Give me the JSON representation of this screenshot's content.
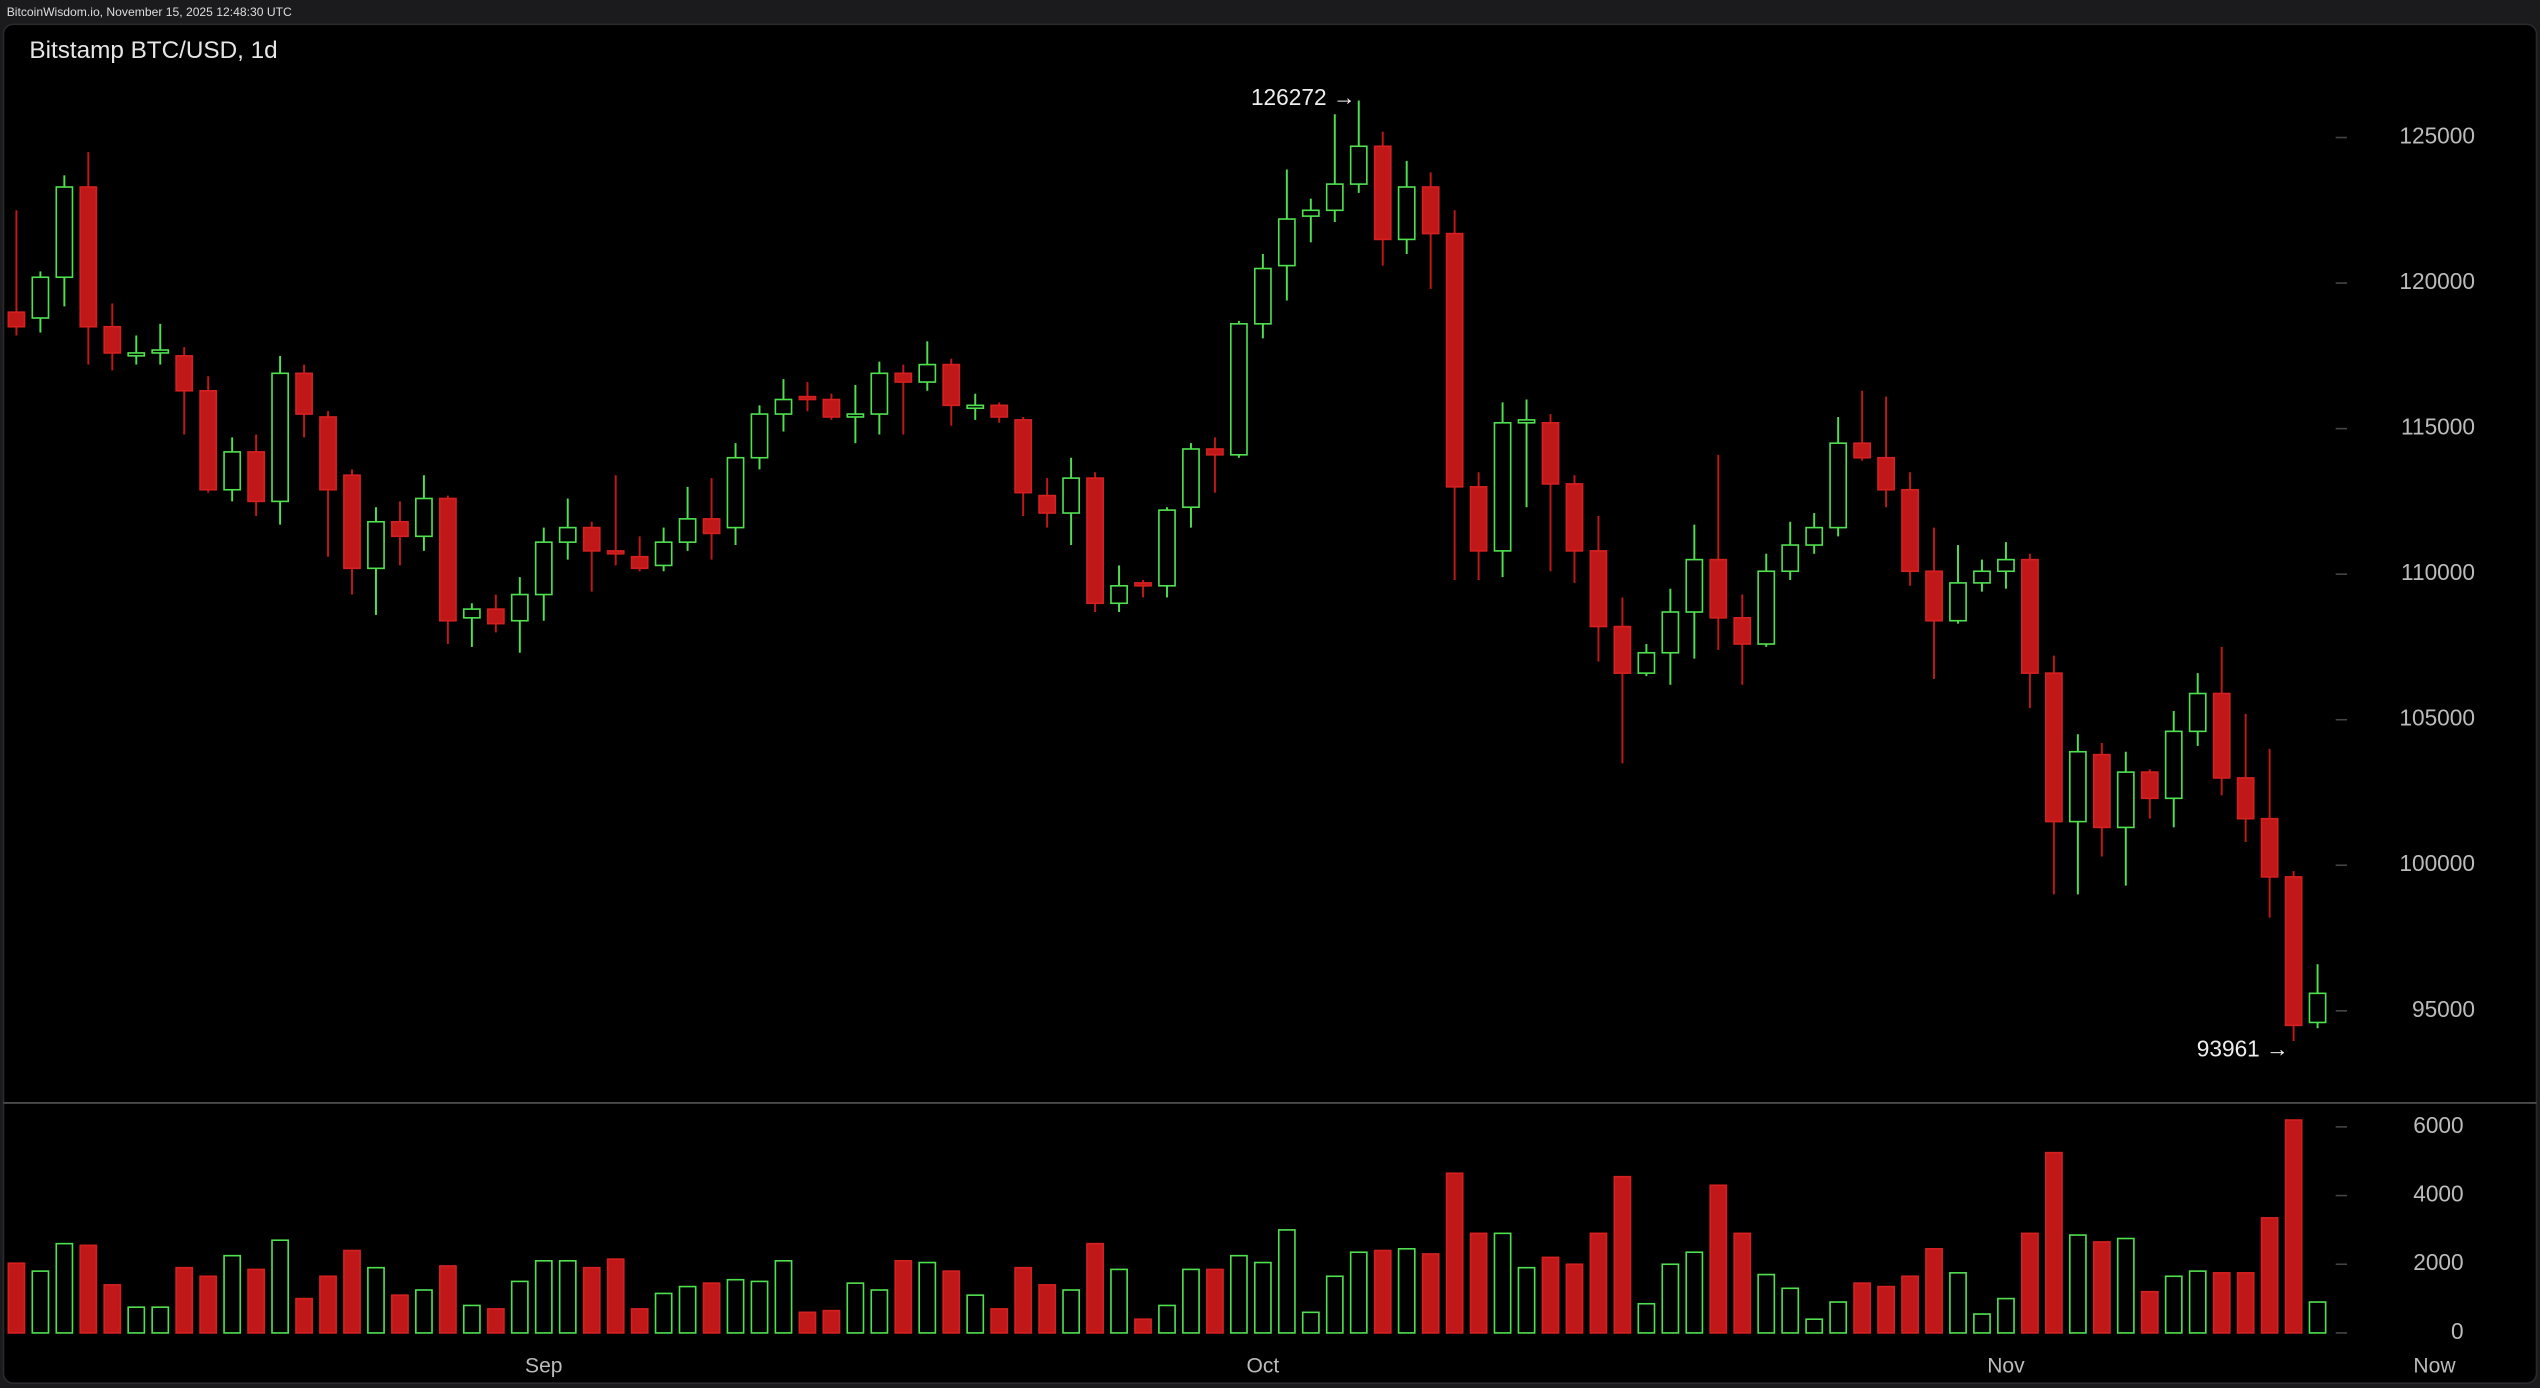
{
  "header": "BitcoinWisdom.io, November 15, 2025 12:48:30 UTC",
  "chart_data": {
    "type": "candlestick",
    "title": "Bitstamp BTC/USD, 1d",
    "up_color": "#4fe04f",
    "down_color": "#c01818",
    "categories": [
      null,
      null,
      null,
      null,
      null,
      null,
      null,
      null,
      null,
      null,
      null,
      null,
      null,
      null,
      null,
      null,
      null,
      null,
      null,
      null,
      null,
      null,
      "Sep",
      null,
      null,
      null,
      null,
      null,
      null,
      null,
      null,
      null,
      null,
      null,
      null,
      null,
      null,
      null,
      null,
      null,
      null,
      null,
      null,
      null,
      null,
      null,
      null,
      null,
      null,
      null,
      null,
      null,
      "Oct",
      null,
      null,
      null,
      null,
      null,
      null,
      null,
      null,
      null,
      null,
      null,
      null,
      null,
      null,
      null,
      null,
      null,
      null,
      null,
      null,
      null,
      null,
      null,
      null,
      null,
      null,
      null,
      null,
      null,
      null,
      "Nov",
      null,
      null,
      null,
      null,
      null,
      null,
      null,
      null,
      null,
      null,
      null,
      null,
      null
    ],
    "now_label": "Now",
    "open": [
      119000,
      118800,
      120200,
      123300,
      118500,
      117500,
      117600,
      117500,
      116300,
      112900,
      114200,
      112500,
      116900,
      115400,
      113400,
      110200,
      111800,
      111300,
      112600,
      108500,
      108800,
      108400,
      109300,
      111100,
      111600,
      110800,
      110600,
      110300,
      111100,
      111900,
      111600,
      114000,
      115500,
      116100,
      116000,
      115400,
      115500,
      116900,
      116600,
      117200,
      115700,
      115800,
      115300,
      112700,
      112100,
      113300,
      109000,
      109700,
      109600,
      112300,
      114300,
      114100,
      118600,
      120600,
      122300,
      122500,
      123400,
      124700,
      121500,
      123300,
      121700,
      113000,
      110800,
      115200,
      115200,
      113100,
      110800,
      108200,
      106600,
      107300,
      108700,
      110500,
      108500,
      107600,
      110100,
      111000,
      111600,
      114500,
      114000,
      112900,
      110100,
      108400,
      109700,
      110100,
      110500,
      106600,
      101500,
      103800,
      101300,
      103200,
      102300,
      104600,
      105900,
      103000,
      101600,
      99600,
      94600
    ],
    "high": [
      122500,
      120400,
      123700,
      124500,
      119300,
      118200,
      118600,
      117800,
      116800,
      114700,
      114800,
      117500,
      117200,
      115600,
      113600,
      112300,
      112500,
      113400,
      112700,
      109000,
      109300,
      109900,
      111600,
      112600,
      111800,
      113400,
      111300,
      111600,
      113000,
      113300,
      114500,
      115800,
      116700,
      116600,
      116200,
      116500,
      117300,
      117200,
      118000,
      117400,
      116200,
      115900,
      115400,
      113300,
      114000,
      113500,
      110300,
      109800,
      112300,
      114500,
      114700,
      118700,
      121000,
      123900,
      122900,
      125800,
      126272,
      125200,
      124200,
      123800,
      122500,
      113500,
      115900,
      116000,
      115500,
      113400,
      112000,
      109200,
      107600,
      109500,
      111700,
      114100,
      109300,
      110700,
      111800,
      112100,
      115400,
      116300,
      116100,
      113500,
      111600,
      111000,
      110500,
      111100,
      110700,
      107200,
      104500,
      104200,
      103900,
      103300,
      105300,
      106600,
      107500,
      105200,
      104000,
      99800,
      96600
    ],
    "low": [
      118200,
      118300,
      119200,
      117200,
      117000,
      117200,
      117200,
      114800,
      112800,
      112500,
      112000,
      111700,
      114700,
      110600,
      109300,
      108600,
      110300,
      110800,
      107600,
      107500,
      108000,
      107300,
      108400,
      110500,
      109400,
      110300,
      110100,
      110100,
      110800,
      110500,
      111000,
      113600,
      114900,
      115600,
      115300,
      114500,
      114800,
      114800,
      116300,
      115100,
      115300,
      115200,
      112000,
      111600,
      111000,
      108700,
      108700,
      109200,
      109200,
      111600,
      112800,
      114000,
      118100,
      119400,
      121400,
      122100,
      123100,
      120600,
      121000,
      119800,
      109800,
      109800,
      109900,
      112300,
      110100,
      109700,
      107000,
      103500,
      106500,
      106200,
      107100,
      107400,
      106200,
      107500,
      109800,
      110700,
      111300,
      113900,
      112300,
      109600,
      106400,
      108300,
      109400,
      109500,
      105400,
      99000,
      99000,
      100300,
      99300,
      101600,
      101300,
      104100,
      102400,
      100800,
      98200,
      93961,
      94400
    ],
    "close": [
      118500,
      120200,
      123300,
      118500,
      117600,
      117600,
      117700,
      116300,
      112900,
      114200,
      112500,
      116900,
      115500,
      112900,
      110200,
      111800,
      111300,
      112600,
      108400,
      108800,
      108300,
      109300,
      111100,
      111600,
      110800,
      110700,
      110200,
      111100,
      111900,
      111400,
      114000,
      115500,
      116000,
      116000,
      115400,
      115500,
      116900,
      116600,
      117200,
      115800,
      115800,
      115400,
      112800,
      112100,
      113300,
      109000,
      109600,
      109600,
      112200,
      114300,
      114100,
      118600,
      120500,
      122200,
      122500,
      123400,
      124700,
      121500,
      123300,
      121700,
      113000,
      110800,
      115200,
      115300,
      113100,
      110800,
      108200,
      106600,
      107300,
      108700,
      110500,
      108500,
      107600,
      110100,
      111000,
      111600,
      114500,
      114000,
      112900,
      110100,
      108400,
      109700,
      110100,
      110500,
      106600,
      101500,
      103900,
      101300,
      103200,
      102300,
      104600,
      105900,
      103000,
      101600,
      99600,
      94500,
      95600
    ],
    "volume": [
      2030,
      1800,
      2600,
      2550,
      1400,
      750,
      750,
      1900,
      1650,
      2250,
      1850,
      2700,
      1000,
      1650,
      2400,
      1900,
      1100,
      1250,
      1950,
      800,
      700,
      1500,
      2100,
      2100,
      1900,
      2150,
      700,
      1150,
      1350,
      1450,
      1550,
      1500,
      2100,
      600,
      650,
      1450,
      1250,
      2100,
      2050,
      1800,
      1100,
      700,
      1900,
      1400,
      1250,
      2600,
      1850,
      400,
      800,
      1850,
      1850,
      2250,
      2050,
      3000,
      600,
      1650,
      2350,
      2400,
      2450,
      2300,
      4650,
      2900,
      2900,
      1900,
      2200,
      2000,
      2900,
      4550,
      850,
      2000,
      2350,
      4300,
      2900,
      1700,
      1300,
      400,
      900,
      1450,
      1350,
      1650,
      2450,
      1750,
      550,
      1000,
      2900,
      5250,
      2850,
      2650,
      2750,
      1200,
      1650,
      1800,
      1750,
      1750,
      3350,
      6200,
      900
    ],
    "ylim": [
      91890,
      128890
    ],
    "yticks": [
      95000,
      100000,
      105000,
      110000,
      115000,
      120000,
      125000
    ],
    "volume_lim": [
      0,
      6650
    ],
    "volume_ticks": [
      0,
      2000,
      4000,
      6000
    ],
    "high_label": "126272 →",
    "low_label": "93961 →"
  }
}
